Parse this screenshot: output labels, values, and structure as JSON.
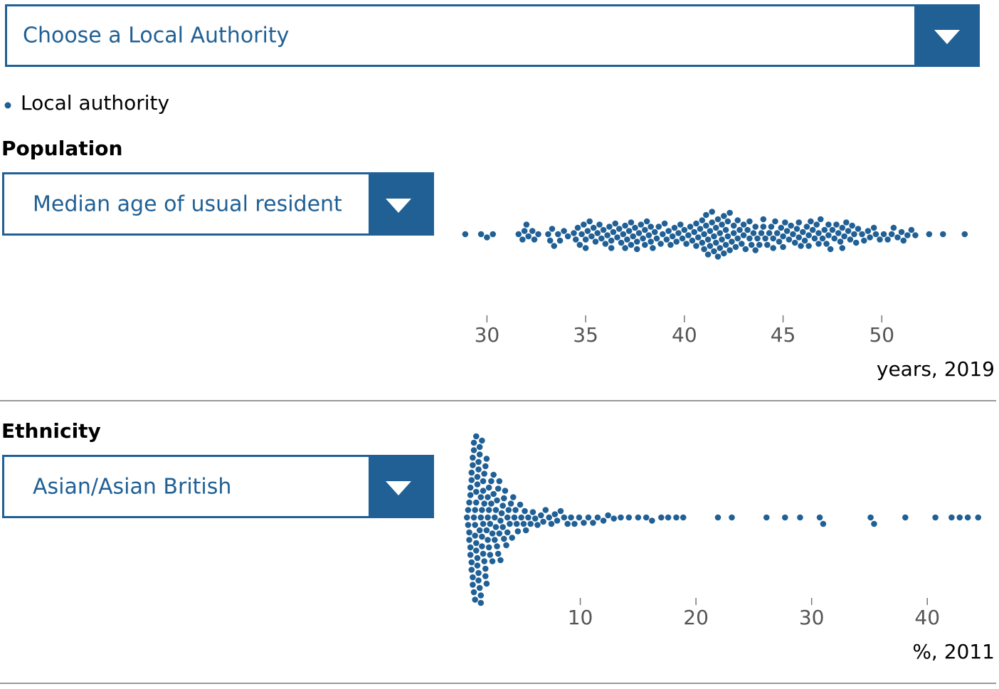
{
  "header": {
    "selector": "Choose a Local Authority"
  },
  "legend": {
    "label": "Local authority",
    "color": "#206095"
  },
  "chart_data": [
    {
      "type": "beeswarm",
      "title": "Population",
      "selector": "Median age of usual resident",
      "xlabel": "years, 2019",
      "color": "#206095",
      "xlim": [
        28.4,
        55
      ],
      "xticks": [
        30,
        35,
        40,
        45,
        50
      ],
      "values": [
        28.9,
        29.7,
        30.0,
        30.3,
        31.6,
        31.8,
        31.9,
        32.0,
        32.1,
        32.3,
        32.4,
        32.6,
        33.1,
        33.2,
        33.3,
        33.4,
        33.6,
        33.7,
        33.9,
        34.1,
        34.4,
        34.5,
        34.6,
        34.7,
        34.8,
        34.9,
        35.0,
        35.0,
        35.1,
        35.2,
        35.3,
        35.4,
        35.5,
        35.6,
        35.7,
        35.8,
        35.9,
        36.0,
        36.1,
        36.2,
        36.3,
        36.3,
        36.4,
        36.5,
        36.6,
        36.7,
        36.8,
        36.9,
        37.0,
        37.0,
        37.1,
        37.2,
        37.3,
        37.3,
        37.4,
        37.5,
        37.6,
        37.6,
        37.7,
        37.8,
        37.9,
        38.0,
        38.0,
        38.1,
        38.2,
        38.3,
        38.3,
        38.4,
        38.5,
        38.6,
        38.7,
        38.8,
        38.9,
        39.0,
        39.1,
        39.2,
        39.3,
        39.4,
        39.5,
        39.6,
        39.7,
        39.8,
        39.9,
        40.0,
        40.1,
        40.2,
        40.3,
        40.4,
        40.5,
        40.6,
        40.6,
        40.7,
        40.8,
        40.9,
        40.9,
        41.0,
        41.0,
        41.1,
        41.1,
        41.2,
        41.2,
        41.3,
        41.3,
        41.4,
        41.4,
        41.5,
        41.5,
        41.6,
        41.6,
        41.7,
        41.7,
        41.8,
        41.8,
        41.9,
        41.9,
        42.0,
        42.0,
        42.1,
        42.1,
        42.2,
        42.2,
        42.3,
        42.3,
        42.4,
        42.5,
        42.5,
        42.6,
        42.7,
        42.7,
        42.8,
        42.9,
        43.0,
        43.0,
        43.1,
        43.2,
        43.3,
        43.3,
        43.4,
        43.5,
        43.6,
        43.6,
        43.7,
        43.8,
        43.9,
        44.0,
        44.0,
        44.1,
        44.2,
        44.3,
        44.4,
        44.5,
        44.5,
        44.6,
        44.7,
        44.8,
        44.9,
        45.0,
        45.0,
        45.1,
        45.2,
        45.3,
        45.4,
        45.5,
        45.6,
        45.7,
        45.8,
        45.8,
        45.9,
        46.0,
        46.1,
        46.2,
        46.3,
        46.3,
        46.4,
        46.5,
        46.6,
        46.7,
        46.8,
        46.8,
        46.9,
        47.0,
        47.1,
        47.2,
        47.3,
        47.3,
        47.4,
        47.5,
        47.6,
        47.7,
        47.8,
        47.9,
        48.0,
        48.0,
        48.1,
        48.2,
        48.3,
        48.4,
        48.5,
        48.6,
        48.7,
        48.8,
        49.0,
        49.1,
        49.3,
        49.4,
        49.6,
        49.7,
        49.9,
        50.1,
        50.3,
        50.5,
        50.6,
        50.8,
        51.0,
        51.1,
        51.3,
        51.5,
        51.7,
        52.4,
        53.1,
        54.2
      ]
    },
    {
      "type": "beeswarm",
      "title": "Ethnicity",
      "selector": "Asian/Asian British",
      "xlabel": "%, 2011",
      "color": "#206095",
      "xlim": [
        -0.8,
        44.6
      ],
      "xticks": [
        10,
        20,
        30,
        40
      ],
      "values": [
        0.2,
        0.3,
        0.3,
        0.4,
        0.4,
        0.4,
        0.5,
        0.5,
        0.5,
        0.5,
        0.6,
        0.6,
        0.6,
        0.6,
        0.7,
        0.7,
        0.7,
        0.7,
        0.8,
        0.8,
        0.8,
        0.8,
        0.9,
        0.9,
        0.9,
        0.9,
        1.0,
        1.0,
        1.0,
        1.0,
        1.0,
        1.1,
        1.1,
        1.1,
        1.1,
        1.2,
        1.2,
        1.2,
        1.2,
        1.3,
        1.3,
        1.3,
        1.3,
        1.4,
        1.4,
        1.4,
        1.4,
        1.5,
        1.5,
        1.5,
        1.5,
        1.6,
        1.6,
        1.6,
        1.6,
        1.7,
        1.7,
        1.7,
        1.8,
        1.8,
        1.8,
        1.9,
        1.9,
        1.9,
        2.0,
        2.0,
        2.0,
        2.1,
        2.1,
        2.1,
        2.2,
        2.2,
        2.3,
        2.3,
        2.4,
        2.4,
        2.5,
        2.5,
        2.6,
        2.6,
        2.7,
        2.7,
        2.8,
        2.8,
        2.9,
        2.9,
        3.0,
        3.0,
        3.1,
        3.1,
        3.2,
        3.3,
        3.3,
        3.4,
        3.4,
        3.5,
        3.6,
        3.7,
        3.7,
        3.8,
        3.9,
        4.0,
        4.1,
        4.2,
        4.3,
        4.4,
        4.5,
        4.6,
        4.8,
        4.9,
        5.1,
        5.2,
        5.3,
        5.5,
        5.7,
        5.9,
        6.1,
        6.3,
        6.6,
        6.8,
        7.0,
        7.3,
        7.5,
        7.8,
        8.0,
        8.3,
        8.6,
        8.9,
        9.2,
        9.5,
        9.9,
        10.3,
        10.7,
        11.1,
        11.5,
        12.0,
        12.4,
        12.9,
        13.5,
        14.2,
        15.0,
        15.7,
        16.2,
        17.0,
        17.6,
        18.3,
        18.9,
        21.9,
        23.1,
        26.1,
        27.7,
        29.0,
        30.7,
        31.0,
        35.1,
        35.4,
        38.1,
        40.7,
        42.1,
        42.8,
        43.5,
        44.4
      ]
    }
  ]
}
